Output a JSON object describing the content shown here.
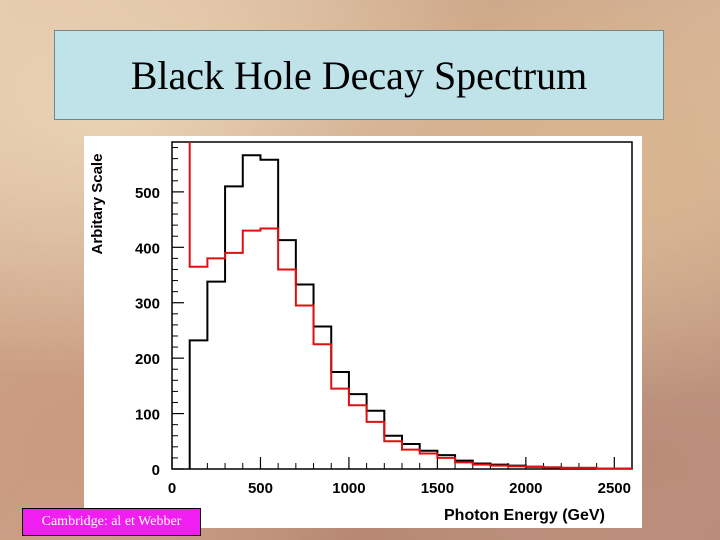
{
  "slide": {
    "title": "Black Hole Decay Spectrum",
    "credit": "Cambridge: al et Webber"
  },
  "colors": {
    "title_bg": "#bfe3e9",
    "credit_bg": "#f01ef0",
    "series_black": "#000000",
    "series_red": "#dd1111"
  },
  "chart_data": {
    "type": "line",
    "style": "histogram",
    "xlabel": "Photon Energy (GeV)",
    "ylabel": "Arbitary Scale",
    "xlim": [
      0,
      2600
    ],
    "ylim": [
      0,
      590
    ],
    "xticks": [
      0,
      500,
      1000,
      1500,
      2000,
      2500
    ],
    "yticks": [
      0,
      100,
      200,
      300,
      400,
      500
    ],
    "bin_edges": [
      100,
      200,
      300,
      400,
      500,
      600,
      700,
      800,
      900,
      1000,
      1100,
      1200,
      1300,
      1400,
      1500,
      1600,
      1700,
      1800,
      1900,
      2000,
      2100,
      2200,
      2300,
      2400,
      2500,
      2600
    ],
    "series": [
      {
        "values": [
          232,
          338,
          510,
          566,
          558,
          413,
          333,
          257,
          175,
          135,
          105,
          60,
          45,
          33,
          25,
          15,
          10,
          8,
          6,
          4,
          3,
          2,
          2,
          1,
          1
        ],
        "color": "#000000"
      },
      {
        "values": [
          365,
          380,
          390,
          430,
          434,
          360,
          295,
          225,
          145,
          115,
          85,
          50,
          35,
          28,
          20,
          12,
          8,
          6,
          5,
          4,
          3,
          2,
          2,
          1,
          1
        ],
        "color": "#dd1111",
        "spike_at_start": 590
      }
    ],
    "grid": false,
    "legend": "none"
  }
}
